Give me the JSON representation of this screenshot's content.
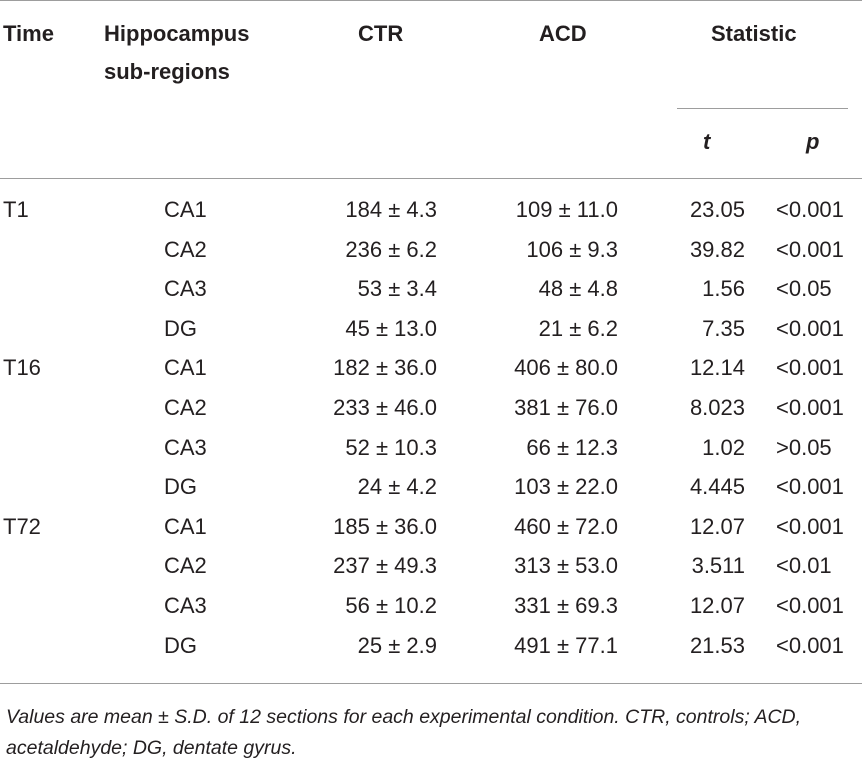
{
  "headers": {
    "time": "Time",
    "region_line1": "Hippocampus",
    "region_line2": "sub-regions",
    "ctr": "CTR",
    "acd": "ACD",
    "statistic": "Statistic",
    "t": "t",
    "p": "p"
  },
  "rows": [
    {
      "time": "T1",
      "region": "CA1",
      "ctr": "184 ± 4.3",
      "acd": "109 ± 11.0",
      "t": "23.05",
      "p": "<0.001"
    },
    {
      "time": "",
      "region": "CA2",
      "ctr": "236 ± 6.2",
      "acd": "106 ± 9.3",
      "t": "39.82",
      "p": "<0.001"
    },
    {
      "time": "",
      "region": "CA3",
      "ctr": "53 ± 3.4",
      "acd": "48 ± 4.8",
      "t": "1.56",
      "p": "<0.05"
    },
    {
      "time": "",
      "region": "DG",
      "ctr": "45 ± 13.0",
      "acd": "21 ± 6.2",
      "t": "7.35",
      "p": "<0.001"
    },
    {
      "time": "T16",
      "region": "CA1",
      "ctr": "182 ± 36.0",
      "acd": "406 ± 80.0",
      "t": "12.14",
      "p": "<0.001"
    },
    {
      "time": "",
      "region": "CA2",
      "ctr": "233 ± 46.0",
      "acd": "381 ± 76.0",
      "t": "8.023",
      "p": "<0.001"
    },
    {
      "time": "",
      "region": "CA3",
      "ctr": "52 ± 10.3",
      "acd": "66 ± 12.3",
      "t": "1.02",
      "p": ">0.05"
    },
    {
      "time": "",
      "region": "DG",
      "ctr": "24 ± 4.2",
      "acd": "103 ± 22.0",
      "t": "4.445",
      "p": "<0.001"
    },
    {
      "time": "T72",
      "region": "CA1",
      "ctr": "185 ± 36.0",
      "acd": "460 ± 72.0",
      "t": "12.07",
      "p": "<0.001"
    },
    {
      "time": "",
      "region": "CA2",
      "ctr": "237 ± 49.3",
      "acd": "313 ± 53.0",
      "t": "3.511",
      "p": "<0.01"
    },
    {
      "time": "",
      "region": "CA3",
      "ctr": "56 ± 10.2",
      "acd": "331 ± 69.3",
      "t": "12.07",
      "p": "<0.001"
    },
    {
      "time": "",
      "region": "DG",
      "ctr": "25 ± 2.9",
      "acd": "491 ± 77.1",
      "t": "21.53",
      "p": "<0.001"
    }
  ],
  "footnote": "Values are mean ± S.D. of 12 sections for each experimental condition. CTR, controls; ACD, acetaldehyde; DG, dentate gyrus."
}
